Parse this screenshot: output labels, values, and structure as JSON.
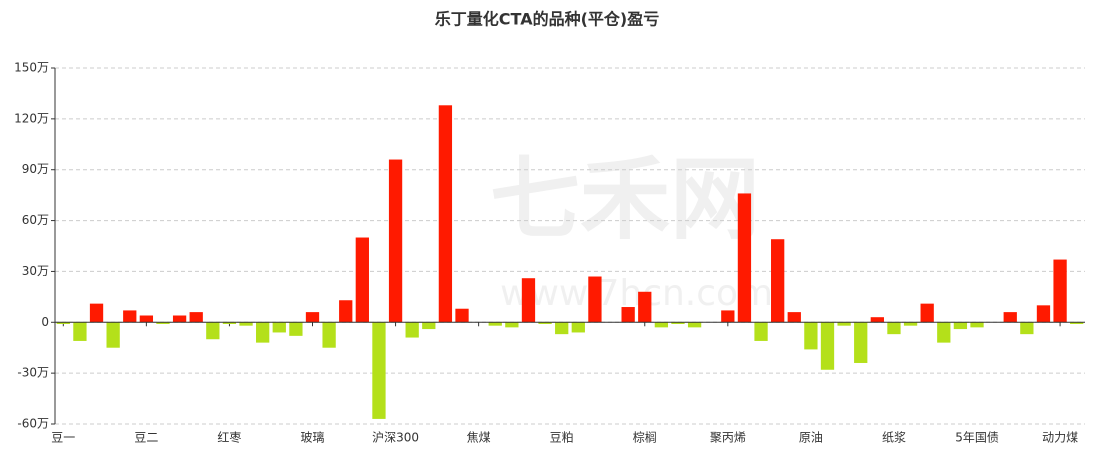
{
  "chart_data": {
    "type": "bar",
    "title": "乐丁量化CTA的品种(平仓)盈亏",
    "watermark": "七禾网",
    "watermark_url": "www.7hcn.com",
    "categories": [
      "豆一",
      null,
      null,
      null,
      null,
      "豆二",
      null,
      null,
      null,
      null,
      "红枣",
      null,
      null,
      null,
      null,
      "玻璃",
      null,
      null,
      null,
      null,
      "沪深300",
      null,
      null,
      null,
      null,
      "焦煤",
      null,
      null,
      null,
      null,
      "豆粕",
      null,
      null,
      null,
      null,
      "棕榈",
      null,
      null,
      null,
      null,
      "聚丙烯",
      null,
      null,
      null,
      null,
      "原油",
      null,
      null,
      null,
      null,
      "纸浆",
      null,
      null,
      null,
      null,
      "5年国债",
      null,
      null,
      null,
      null,
      "动力煤",
      null
    ],
    "values": [
      -1,
      -11,
      11,
      -15,
      7,
      4,
      -1,
      4,
      6,
      -10,
      -1,
      -2,
      -12,
      -6,
      -8,
      6,
      -15,
      13,
      50,
      -57,
      96,
      -9,
      -4,
      128,
      8,
      0,
      -2,
      -3,
      26,
      -1,
      -7,
      -6,
      27,
      0,
      9,
      18,
      -3,
      -1,
      -3,
      0,
      7,
      76,
      -11,
      49,
      6,
      -16,
      -28,
      -2,
      -24,
      3,
      -7,
      -2,
      11,
      -12,
      -4,
      -3,
      0,
      6,
      -7,
      10,
      37,
      -1
    ],
    "positive_color": "#ff1a00",
    "negative_color": "#b4e01a",
    "ylim": [
      -60,
      150
    ],
    "yticks": [
      {
        "value": -60,
        "label": "-60万"
      },
      {
        "value": -30,
        "label": "-30万"
      },
      0,
      {
        "value": 30,
        "label": "30万"
      },
      {
        "value": 60,
        "label": "60万"
      },
      {
        "value": 90,
        "label": "90万"
      },
      {
        "value": 120,
        "label": "120万"
      },
      {
        "value": 150,
        "label": "150万"
      }
    ],
    "grid": true
  }
}
